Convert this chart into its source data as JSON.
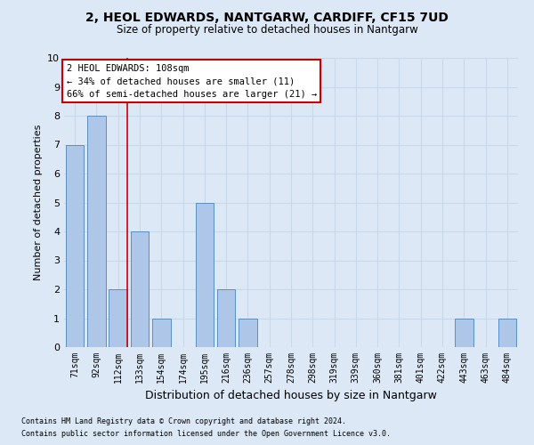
{
  "title": "2, HEOL EDWARDS, NANTGARW, CARDIFF, CF15 7UD",
  "subtitle": "Size of property relative to detached houses in Nantgarw",
  "xlabel": "Distribution of detached houses by size in Nantgarw",
  "ylabel": "Number of detached properties",
  "categories": [
    "71sqm",
    "92sqm",
    "112sqm",
    "133sqm",
    "154sqm",
    "174sqm",
    "195sqm",
    "216sqm",
    "236sqm",
    "257sqm",
    "278sqm",
    "298sqm",
    "319sqm",
    "339sqm",
    "360sqm",
    "381sqm",
    "401sqm",
    "422sqm",
    "443sqm",
    "463sqm",
    "484sqm"
  ],
  "values": [
    7,
    8,
    2,
    4,
    1,
    0,
    5,
    2,
    1,
    0,
    0,
    0,
    0,
    0,
    0,
    0,
    0,
    0,
    1,
    0,
    1
  ],
  "bar_color": "#aec6e8",
  "bar_edge_color": "#5a8fc2",
  "grid_color": "#c8d8e8",
  "background_color": "#dce8f5",
  "plot_bg_color": "#dce8f5",
  "red_line_index": 2,
  "red_line_color": "#cc0000",
  "ylim": [
    0,
    10
  ],
  "yticks": [
    0,
    1,
    2,
    3,
    4,
    5,
    6,
    7,
    8,
    9,
    10
  ],
  "annotation_title": "2 HEOL EDWARDS: 108sqm",
  "annotation_line1": "← 34% of detached houses are smaller (11)",
  "annotation_line2": "66% of semi-detached houses are larger (21) →",
  "annotation_box_color": "#ffffff",
  "annotation_box_edge": "#cc0000",
  "footer1": "Contains HM Land Registry data © Crown copyright and database right 2024.",
  "footer2": "Contains public sector information licensed under the Open Government Licence v3.0."
}
